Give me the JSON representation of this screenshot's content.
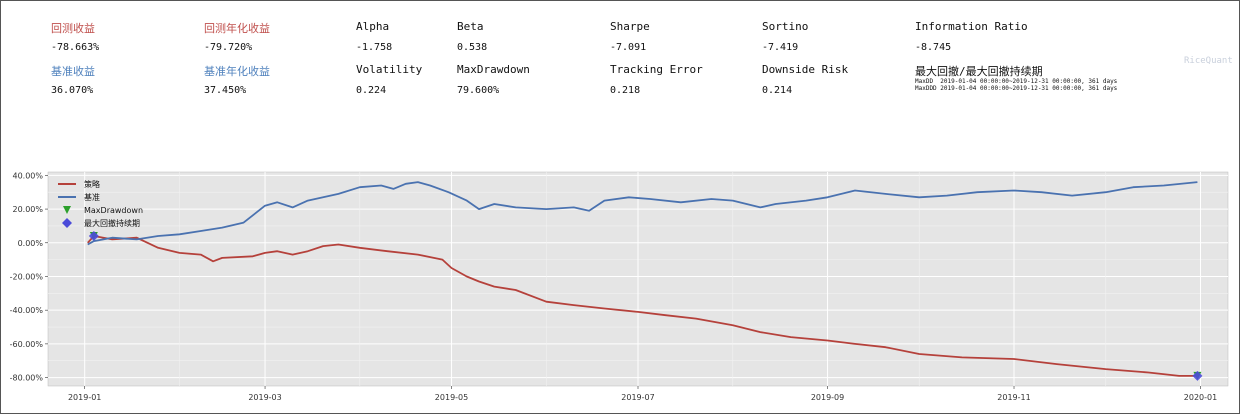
{
  "metrics": [
    {
      "key": "ret",
      "label": "回测收益",
      "value": "-78.663%",
      "color": "red"
    },
    {
      "key": "annret",
      "label": "回测年化收益",
      "value": "-79.720%",
      "color": "red"
    },
    {
      "key": "alpha",
      "label": "Alpha",
      "value": "-1.758",
      "color": "black"
    },
    {
      "key": "beta",
      "label": "Beta",
      "value": "0.538",
      "color": "black"
    },
    {
      "key": "sharpe",
      "label": "Sharpe",
      "value": "-7.091",
      "color": "black"
    },
    {
      "key": "sortino",
      "label": "Sortino",
      "value": "-7.419",
      "color": "black"
    },
    {
      "key": "ir",
      "label": "Information Ratio",
      "value": "-8.745",
      "color": "black"
    },
    {
      "key": "bench",
      "label": "基准收益",
      "value": "36.070%",
      "color": "blue"
    },
    {
      "key": "benchann",
      "label": "基准年化收益",
      "value": "37.450%",
      "color": "blue"
    },
    {
      "key": "vol",
      "label": "Volatility",
      "value": "0.224",
      "color": "black"
    },
    {
      "key": "mdd",
      "label": "MaxDrawdown",
      "value": "79.600%",
      "color": "black"
    },
    {
      "key": "te",
      "label": "Tracking Error",
      "value": "0.218",
      "color": "black"
    },
    {
      "key": "dr",
      "label": "Downside Risk",
      "value": "0.214",
      "color": "black"
    },
    {
      "key": "mddd",
      "label": "最大回撤/最大回撤持续期",
      "value": "",
      "color": "black"
    }
  ],
  "drawdown_info": [
    "MaxDD  2019-01-04 00:00:00~2019-12-31 00:00:00, 361 days",
    "MaxDDD 2019-01-04 00:00:00~2019-12-31 00:00:00, 361 days"
  ],
  "watermark": "RiceQuant",
  "chart_data": {
    "type": "line",
    "x_tick_labels": [
      "2019-01",
      "2019-03",
      "2019-05",
      "2019-07",
      "2019-09",
      "2019-11",
      "2020-01"
    ],
    "y_tick_labels": [
      "40.00%",
      "20.00%",
      "0.00%",
      "-20.00%",
      "-40.00%",
      "-60.00%",
      "-80.00%"
    ],
    "ylim": [
      -85,
      42
    ],
    "xlim": [
      "2018-12-20",
      "2020-01-10"
    ],
    "grid": true,
    "legend_position": "top-left",
    "legend": [
      {
        "label": "策略",
        "kind": "line",
        "color": "#b5413b"
      },
      {
        "label": "基准",
        "kind": "line",
        "color": "#4a72b0"
      },
      {
        "label": "MaxDrawdown",
        "kind": "triangle",
        "color": "#2ca02c"
      },
      {
        "label": "最大回撤持续期",
        "kind": "diamond",
        "color": "#4b4bd9"
      }
    ],
    "series": [
      {
        "name": "策略",
        "color": "#b5413b",
        "points": [
          [
            "2019-01-02",
            0
          ],
          [
            "2019-01-04",
            4
          ],
          [
            "2019-01-10",
            2
          ],
          [
            "2019-01-18",
            3
          ],
          [
            "2019-01-25",
            -3
          ],
          [
            "2019-02-01",
            -6
          ],
          [
            "2019-02-08",
            -7
          ],
          [
            "2019-02-12",
            -11
          ],
          [
            "2019-02-15",
            -9
          ],
          [
            "2019-02-25",
            -8
          ],
          [
            "2019-03-01",
            -6
          ],
          [
            "2019-03-05",
            -5
          ],
          [
            "2019-03-10",
            -7
          ],
          [
            "2019-03-15",
            -5
          ],
          [
            "2019-03-20",
            -2
          ],
          [
            "2019-03-25",
            -1
          ],
          [
            "2019-04-01",
            -3
          ],
          [
            "2019-04-10",
            -5
          ],
          [
            "2019-04-20",
            -7
          ],
          [
            "2019-04-28",
            -10
          ],
          [
            "2019-05-01",
            -15
          ],
          [
            "2019-05-06",
            -20
          ],
          [
            "2019-05-10",
            -23
          ],
          [
            "2019-05-15",
            -26
          ],
          [
            "2019-05-22",
            -28
          ],
          [
            "2019-06-01",
            -35
          ],
          [
            "2019-06-10",
            -37
          ],
          [
            "2019-06-20",
            -39
          ],
          [
            "2019-07-01",
            -41
          ],
          [
            "2019-07-10",
            -43
          ],
          [
            "2019-07-20",
            -45
          ],
          [
            "2019-08-01",
            -49
          ],
          [
            "2019-08-10",
            -53
          ],
          [
            "2019-08-20",
            -56
          ],
          [
            "2019-09-01",
            -58
          ],
          [
            "2019-09-10",
            -60
          ],
          [
            "2019-09-20",
            -62
          ],
          [
            "2019-10-01",
            -66
          ],
          [
            "2019-10-15",
            -68
          ],
          [
            "2019-11-01",
            -69
          ],
          [
            "2019-11-15",
            -72
          ],
          [
            "2019-12-01",
            -75
          ],
          [
            "2019-12-15",
            -77
          ],
          [
            "2019-12-25",
            -79
          ],
          [
            "2019-12-31",
            -79
          ]
        ]
      },
      {
        "name": "基准",
        "color": "#4a72b0",
        "points": [
          [
            "2019-01-02",
            -1
          ],
          [
            "2019-01-04",
            1
          ],
          [
            "2019-01-10",
            3
          ],
          [
            "2019-01-18",
            2
          ],
          [
            "2019-01-25",
            4
          ],
          [
            "2019-02-01",
            5
          ],
          [
            "2019-02-08",
            7
          ],
          [
            "2019-02-15",
            9
          ],
          [
            "2019-02-22",
            12
          ],
          [
            "2019-03-01",
            22
          ],
          [
            "2019-03-05",
            24
          ],
          [
            "2019-03-10",
            21
          ],
          [
            "2019-03-15",
            25
          ],
          [
            "2019-03-20",
            27
          ],
          [
            "2019-03-25",
            29
          ],
          [
            "2019-04-01",
            33
          ],
          [
            "2019-04-08",
            34
          ],
          [
            "2019-04-12",
            32
          ],
          [
            "2019-04-16",
            35
          ],
          [
            "2019-04-20",
            36
          ],
          [
            "2019-04-24",
            34
          ],
          [
            "2019-04-30",
            30
          ],
          [
            "2019-05-06",
            25
          ],
          [
            "2019-05-10",
            20
          ],
          [
            "2019-05-15",
            23
          ],
          [
            "2019-05-22",
            21
          ],
          [
            "2019-06-01",
            20
          ],
          [
            "2019-06-10",
            21
          ],
          [
            "2019-06-15",
            19
          ],
          [
            "2019-06-20",
            25
          ],
          [
            "2019-06-28",
            27
          ],
          [
            "2019-07-05",
            26
          ],
          [
            "2019-07-15",
            24
          ],
          [
            "2019-07-25",
            26
          ],
          [
            "2019-08-01",
            25
          ],
          [
            "2019-08-10",
            21
          ],
          [
            "2019-08-15",
            23
          ],
          [
            "2019-08-25",
            25
          ],
          [
            "2019-09-01",
            27
          ],
          [
            "2019-09-10",
            31
          ],
          [
            "2019-09-20",
            29
          ],
          [
            "2019-10-01",
            27
          ],
          [
            "2019-10-10",
            28
          ],
          [
            "2019-10-20",
            30
          ],
          [
            "2019-11-01",
            31
          ],
          [
            "2019-11-10",
            30
          ],
          [
            "2019-11-20",
            28
          ],
          [
            "2019-12-01",
            30
          ],
          [
            "2019-12-10",
            33
          ],
          [
            "2019-12-20",
            34
          ],
          [
            "2019-12-31",
            36
          ]
        ]
      }
    ],
    "markers": [
      {
        "kind": "triangle",
        "color": "#2ca02c",
        "points": [
          [
            "2019-01-04",
            4
          ],
          [
            "2019-12-31",
            -79
          ]
        ]
      },
      {
        "kind": "diamond",
        "color": "#4b4bd9",
        "points": [
          [
            "2019-01-04",
            4
          ],
          [
            "2019-12-31",
            -79
          ]
        ]
      }
    ]
  }
}
